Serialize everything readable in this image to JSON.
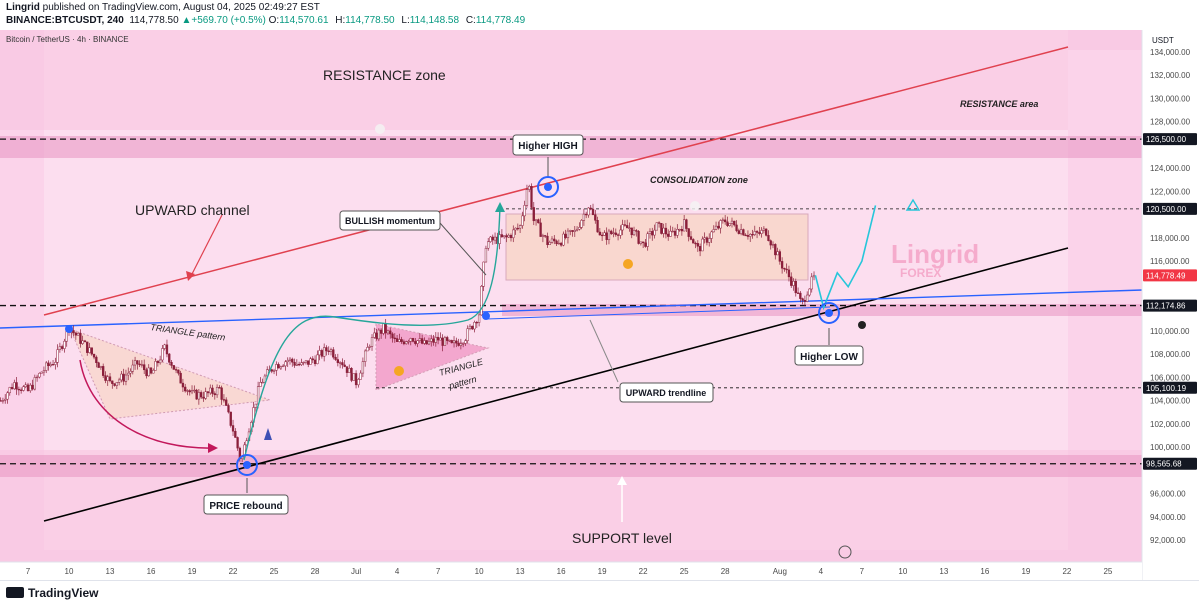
{
  "header": {
    "publisher": "Lingrid",
    "published_text": "published on TradingView.com, August 04, 2025 02:49:27 EST",
    "symbol": "BINANCE:BTCUSDT, 240",
    "last": "114,778.50",
    "change": "+569.70 (+0.5%)",
    "o_label": "O:",
    "o": "114,570.61",
    "h_label": "H:",
    "h": "114,778.50",
    "l_label": "L:",
    "l": "114,148.58",
    "c_label": "C:",
    "c": "114,778.49"
  },
  "chart_title": "Bitcoin / TetherUS · 4h · BINANCE",
  "currency": "USDT",
  "footer": {
    "brand": "TradingView"
  },
  "watermark": {
    "name": "Lingrid",
    "sub": "FOREX"
  },
  "colors": {
    "bg": "#fbd3ea",
    "band": "#f0b0d2",
    "triangle": "#f29ac6",
    "consolidation": "#f9d7cf",
    "up": "#8a1f3a",
    "down": "#8a1f3a",
    "resistance_line": "#e0414f",
    "support_line": "#000000",
    "blue_line": "#2962ff",
    "curve_green": "#26a69a",
    "price_tag": "#f23645"
  },
  "chart_data": {
    "type": "line",
    "title": "Bitcoin / TetherUS · 4h · BINANCE",
    "xlabel": "",
    "ylabel": "",
    "ylim": [
      90500,
      136000
    ],
    "grid": false,
    "x_tick_labels": [
      "7",
      "10",
      "13",
      "16",
      "19",
      "22",
      "25",
      "28",
      "Jul",
      "4",
      "7",
      "10",
      "13",
      "16",
      "19",
      "22",
      "25",
      "28",
      "Aug",
      "4",
      "7",
      "10",
      "13",
      "16",
      "19",
      "22",
      "25"
    ],
    "y_tick_labels": [
      "134,000.00",
      "132,000.00",
      "130,000.00",
      "128,000.00",
      "124,000.00",
      "122,000.00",
      "118,000.00",
      "116,000.00",
      "110,000.00",
      "108,000.00",
      "106,000.00",
      "104,000.00",
      "102,000.00",
      "100,000.00",
      "96,000.00",
      "94,000.00",
      "92,000.00"
    ],
    "price_tags": [
      {
        "label": "126,500.00",
        "value": 126500,
        "style": "dark"
      },
      {
        "label": "120,500.00",
        "value": 120500,
        "style": "dark"
      },
      {
        "label": "114,778.49",
        "value": 114778.49,
        "style": "red"
      },
      {
        "label": "112,174.86",
        "value": 112174.86,
        "style": "dark"
      },
      {
        "label": "105,100.19",
        "value": 105100.19,
        "style": "dark"
      },
      {
        "label": "98,565.68",
        "value": 98565.68,
        "style": "dark"
      }
    ],
    "price_path": [
      {
        "d": 5,
        "p": 104000
      },
      {
        "d": 6,
        "p": 105500
      },
      {
        "d": 7,
        "p": 104800
      },
      {
        "d": 8,
        "p": 106500
      },
      {
        "d": 9,
        "p": 107500
      },
      {
        "d": 10,
        "p": 110300
      },
      {
        "d": 11,
        "p": 109000
      },
      {
        "d": 12,
        "p": 107500
      },
      {
        "d": 13,
        "p": 105500
      },
      {
        "d": 14,
        "p": 106000
      },
      {
        "d": 15,
        "p": 107200
      },
      {
        "d": 16,
        "p": 106200
      },
      {
        "d": 17,
        "p": 108500
      },
      {
        "d": 18,
        "p": 106000
      },
      {
        "d": 19,
        "p": 104500
      },
      {
        "d": 20,
        "p": 104500
      },
      {
        "d": 21,
        "p": 105000
      },
      {
        "d": 22,
        "p": 101500
      },
      {
        "d": 22.6,
        "p": 98700
      },
      {
        "d": 23,
        "p": 101000
      },
      {
        "d": 24,
        "p": 105500
      },
      {
        "d": 25,
        "p": 107000
      },
      {
        "d": 26,
        "p": 107500
      },
      {
        "d": 27,
        "p": 107000
      },
      {
        "d": 28,
        "p": 107600
      },
      {
        "d": 29,
        "p": 108500
      },
      {
        "d": 30,
        "p": 107300
      },
      {
        "d": 31,
        "p": 105600
      },
      {
        "d": 32,
        "p": 109000
      },
      {
        "d": 33,
        "p": 110200
      },
      {
        "d": 34,
        "p": 108900
      },
      {
        "d": 35,
        "p": 109500
      },
      {
        "d": 36,
        "p": 108800
      },
      {
        "d": 37,
        "p": 109300
      },
      {
        "d": 38,
        "p": 108700
      },
      {
        "d": 39,
        "p": 109500
      },
      {
        "d": 40,
        "p": 111500
      },
      {
        "d": 40.5,
        "p": 117500
      },
      {
        "d": 41,
        "p": 117800
      },
      {
        "d": 42,
        "p": 118000
      },
      {
        "d": 43,
        "p": 119000
      },
      {
        "d": 43.6,
        "p": 122900
      },
      {
        "d": 44,
        "p": 119500
      },
      {
        "d": 45,
        "p": 117600
      },
      {
        "d": 46,
        "p": 117800
      },
      {
        "d": 47,
        "p": 118500
      },
      {
        "d": 48,
        "p": 120800
      },
      {
        "d": 49,
        "p": 118000
      },
      {
        "d": 50,
        "p": 118600
      },
      {
        "d": 51,
        "p": 118900
      },
      {
        "d": 52,
        "p": 117400
      },
      {
        "d": 53,
        "p": 119000
      },
      {
        "d": 54,
        "p": 118200
      },
      {
        "d": 55,
        "p": 119200
      },
      {
        "d": 56,
        "p": 117000
      },
      {
        "d": 57,
        "p": 118400
      },
      {
        "d": 58,
        "p": 119500
      },
      {
        "d": 59,
        "p": 118800
      },
      {
        "d": 60,
        "p": 118200
      },
      {
        "d": 61,
        "p": 118600
      },
      {
        "d": 62,
        "p": 116000
      },
      {
        "d": 63,
        "p": 114000
      },
      {
        "d": 63.6,
        "p": 112200
      },
      {
        "d": 64,
        "p": 113500
      },
      {
        "d": 64.6,
        "p": 114778
      }
    ],
    "projection": [
      {
        "d": 64.6,
        "p": 114778
      },
      {
        "d": 65.2,
        "p": 112000
      },
      {
        "d": 66.2,
        "p": 115000
      },
      {
        "d": 67,
        "p": 113800
      },
      {
        "d": 68,
        "p": 116000
      },
      {
        "d": 69,
        "p": 120800
      }
    ],
    "annotations": [
      {
        "text": "RESISTANCE zone",
        "style": "big"
      },
      {
        "text": "RESISTANCE area",
        "style": "italic"
      },
      {
        "text": "UPWARD channel",
        "style": "big"
      },
      {
        "text": "CONSOLIDATION zone",
        "style": "italic"
      },
      {
        "text": "Higher HIGH",
        "style": "box"
      },
      {
        "text": "BULLISH momentum",
        "style": "box"
      },
      {
        "text": "TRIANGLE pattern",
        "style": "italic"
      },
      {
        "text": "TRIANGLE",
        "style": "italic"
      },
      {
        "text": "pattern",
        "style": "italic"
      },
      {
        "text": "UPWARD trendline",
        "style": "box"
      },
      {
        "text": "Higher LOW",
        "style": "box"
      },
      {
        "text": "PRICE rebound",
        "style": "box"
      },
      {
        "text": "SUPPORT level",
        "style": "big"
      }
    ]
  }
}
